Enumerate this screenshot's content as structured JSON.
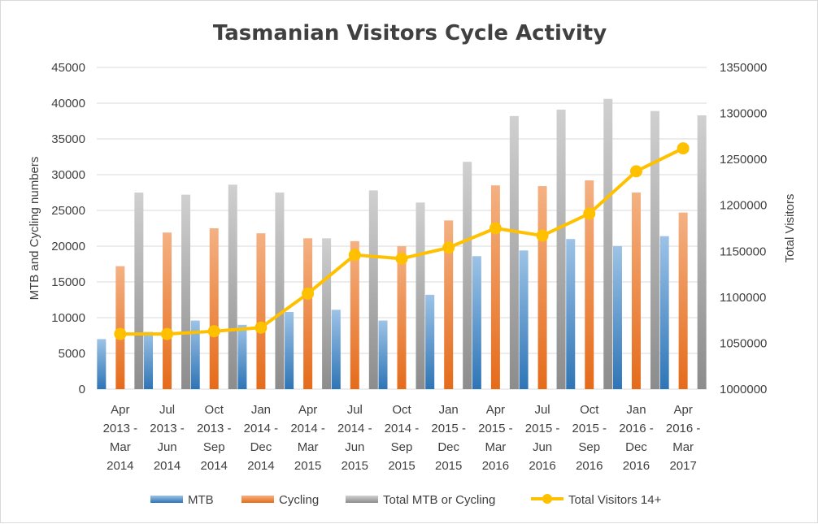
{
  "chart_data": {
    "type": "bar",
    "title": "Tasmanian Visitors Cycle Activity",
    "ylabel": "MTB and Cycling numbers",
    "y2label": "Total Visitors",
    "ylim": [
      0,
      45000
    ],
    "y2lim": [
      1000000,
      1350000
    ],
    "yticks": [
      "0",
      "5000",
      "10000",
      "15000",
      "20000",
      "25000",
      "30000",
      "35000",
      "40000",
      "45000"
    ],
    "y2ticks": [
      "1000000",
      "1050000",
      "1100000",
      "1150000",
      "1200000",
      "1250000",
      "1300000",
      "1350000"
    ],
    "categories": [
      [
        "Apr",
        "2013 -",
        "Mar",
        "2014"
      ],
      [
        "Jul",
        "2013 -",
        "Jun",
        "2014"
      ],
      [
        "Oct",
        "2013 -",
        "Sep",
        "2014"
      ],
      [
        "Jan",
        "2014 -",
        "Dec",
        "2014"
      ],
      [
        "Apr",
        "2014 -",
        "Mar",
        "2015"
      ],
      [
        "Jul",
        "2014 -",
        "Jun",
        "2015"
      ],
      [
        "Oct",
        "2014 -",
        "Sep",
        "2015"
      ],
      [
        "Jan",
        "2015 -",
        "Dec",
        "2015"
      ],
      [
        "Apr",
        "2015 -",
        "Mar",
        "2016"
      ],
      [
        "Jul",
        "2015 -",
        "Jun",
        "2016"
      ],
      [
        "Oct",
        "2015 -",
        "Sep",
        "2016"
      ],
      [
        "Jan",
        "2016 -",
        "Dec",
        "2016"
      ],
      [
        "Apr",
        "2016 -",
        "Mar",
        "2017"
      ]
    ],
    "series": [
      {
        "name": "MTB",
        "type": "bar",
        "axis": "left",
        "color": "#5b9bd5",
        "values": [
          7000,
          8000,
          9600,
          9000,
          10800,
          11100,
          9600,
          13200,
          18600,
          19400,
          21000,
          20000,
          21400
        ]
      },
      {
        "name": "Cycling",
        "type": "bar",
        "axis": "left",
        "color": "#ed7d31",
        "values": [
          17200,
          21900,
          22500,
          21800,
          21100,
          20700,
          20000,
          23600,
          28500,
          28400,
          29200,
          27500,
          24700
        ]
      },
      {
        "name": "Total MTB or Cycling",
        "type": "bar",
        "axis": "left",
        "color": "#a5a5a5",
        "values": [
          27500,
          27200,
          28600,
          27500,
          21100,
          27800,
          26100,
          31800,
          38200,
          39100,
          40600,
          38900,
          38300
        ]
      },
      {
        "name": "Total Visitors 14+",
        "type": "line",
        "axis": "right",
        "color": "#ffc000",
        "values": [
          1060000,
          1060000,
          1063000,
          1067000,
          1104000,
          1146000,
          1142000,
          1154000,
          1175000,
          1167000,
          1191000,
          1237000,
          1262000
        ]
      }
    ],
    "legend_position": "bottom",
    "grid": true
  }
}
